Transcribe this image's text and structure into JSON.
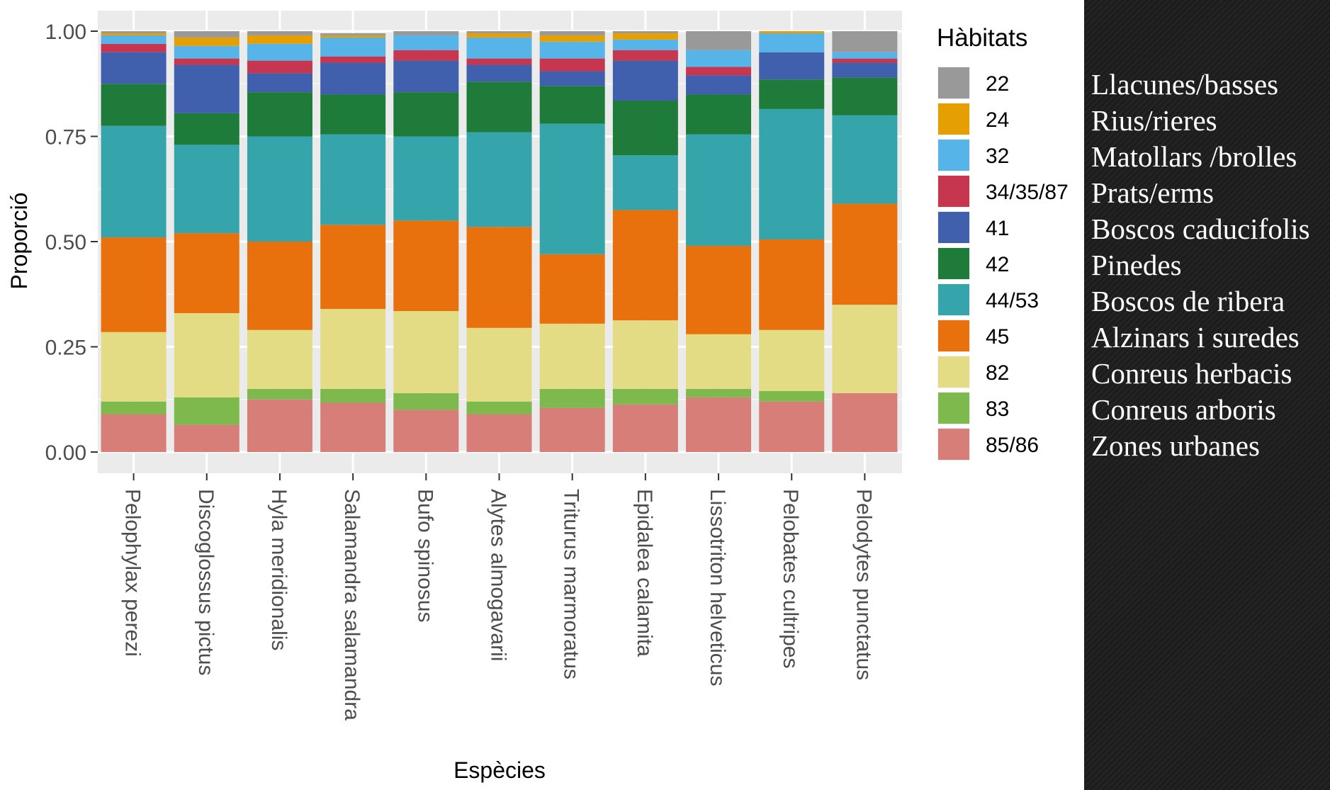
{
  "chart_data": {
    "type": "bar",
    "stacked": true,
    "xlabel": "Espècies",
    "ylabel": "Proporció",
    "ylim": [
      0,
      1
    ],
    "yticks": [
      "0.00",
      "0.25",
      "0.50",
      "0.75",
      "1.00"
    ],
    "grid": true,
    "legend": {
      "title": "Hàbitats",
      "placement": "right"
    },
    "categories": [
      "Pelophylax perezi",
      "Discoglossus pictus",
      "Hyla meridionalis",
      "Salamandra salamandra",
      "Bufo spinosus",
      "Alytes almogavarii",
      "Triturus marmoratus",
      "Epidalea calamita",
      "Lissotriton helveticus",
      "Pelobates cultripes",
      "Pelodytes punctatus"
    ],
    "series": [
      {
        "name": "85/86",
        "color": "#D77E78",
        "values": [
          0.09,
          0.065,
          0.125,
          0.117,
          0.1,
          0.09,
          0.105,
          0.113,
          0.13,
          0.12,
          0.14
        ]
      },
      {
        "name": "83",
        "color": "#7DB94C",
        "values": [
          0.03,
          0.065,
          0.025,
          0.033,
          0.04,
          0.03,
          0.045,
          0.037,
          0.02,
          0.025,
          0.0
        ]
      },
      {
        "name": "82",
        "color": "#E3DC85",
        "values": [
          0.165,
          0.2,
          0.14,
          0.19,
          0.195,
          0.175,
          0.155,
          0.163,
          0.13,
          0.145,
          0.21
        ]
      },
      {
        "name": "45",
        "color": "#E8710D",
        "values": [
          0.225,
          0.19,
          0.21,
          0.2,
          0.215,
          0.24,
          0.165,
          0.262,
          0.21,
          0.215,
          0.24
        ]
      },
      {
        "name": "44/53",
        "color": "#36A5AB",
        "values": [
          0.265,
          0.21,
          0.25,
          0.215,
          0.2,
          0.225,
          0.31,
          0.13,
          0.265,
          0.31,
          0.21
        ]
      },
      {
        "name": "42",
        "color": "#1E7B3A",
        "values": [
          0.1,
          0.075,
          0.105,
          0.095,
          0.105,
          0.12,
          0.09,
          0.13,
          0.095,
          0.07,
          0.09
        ]
      },
      {
        "name": "41",
        "color": "#405FAD",
        "values": [
          0.075,
          0.115,
          0.045,
          0.075,
          0.075,
          0.04,
          0.035,
          0.095,
          0.045,
          0.065,
          0.035
        ]
      },
      {
        "name": "34/35/87",
        "color": "#C6374F",
        "values": [
          0.02,
          0.015,
          0.03,
          0.015,
          0.025,
          0.015,
          0.03,
          0.025,
          0.02,
          0.0,
          0.01
        ]
      },
      {
        "name": "32",
        "color": "#56B4E9",
        "values": [
          0.02,
          0.03,
          0.04,
          0.045,
          0.035,
          0.05,
          0.04,
          0.025,
          0.04,
          0.045,
          0.015
        ]
      },
      {
        "name": "24",
        "color": "#E69F00",
        "values": [
          0.005,
          0.02,
          0.02,
          0.005,
          0.0,
          0.01,
          0.015,
          0.015,
          0.0,
          0.005,
          0.0
        ]
      },
      {
        "name": "22",
        "color": "#999999",
        "values": [
          0.005,
          0.015,
          0.01,
          0.005,
          0.01,
          0.005,
          0.01,
          0.005,
          0.045,
          0.0,
          0.05
        ]
      }
    ]
  },
  "legend_order": [
    "22",
    "24",
    "32",
    "34/35/87",
    "41",
    "42",
    "44/53",
    "45",
    "82",
    "83",
    "85/86"
  ],
  "habitat_names": [
    "Llacunes/basses",
    "Rius/rieres",
    "Matollars /brolles",
    "Prats/erms",
    "Boscos caducifolis",
    "Pinedes",
    "Boscos de ribera",
    "Alzinars i suredes",
    "Conreus herbacis",
    "Conreus arboris",
    "Zones urbanes"
  ]
}
